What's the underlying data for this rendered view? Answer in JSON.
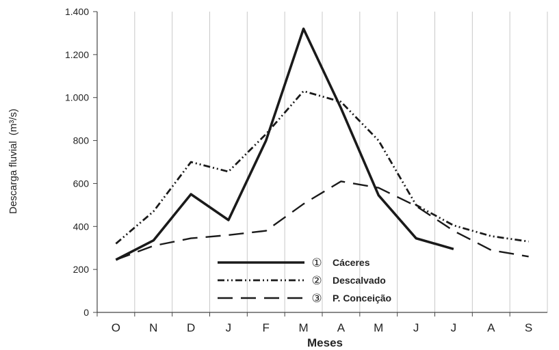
{
  "chart_data": {
    "type": "line",
    "title": "",
    "xlabel": "Meses",
    "ylabel": "Descarga fluvial",
    "ylabel_unit": "(m³/s)",
    "categories": [
      "O",
      "N",
      "D",
      "J",
      "F",
      "M",
      "A",
      "M",
      "J",
      "J",
      "A",
      "S"
    ],
    "ylim": [
      0,
      1400
    ],
    "yticks": [
      0,
      200,
      400,
      600,
      800,
      1000,
      1200,
      1400
    ],
    "ytick_labels": [
      "0",
      "200",
      "400",
      "600",
      "800",
      "1.000",
      "1.200",
      "1.400"
    ],
    "grid": "vertical",
    "legend_position": "bottom-center",
    "series": [
      {
        "name": "Cáceres",
        "marker": "①",
        "style": "solid",
        "color": "#1a1a1a",
        "values": [
          245,
          335,
          550,
          430,
          800,
          1320,
          950,
          545,
          345,
          295,
          null,
          null
        ]
      },
      {
        "name": "Descalvado",
        "marker": "②",
        "style": "dash-dot-dot",
        "color": "#1a1a1a",
        "values": [
          320,
          470,
          700,
          655,
          830,
          1030,
          980,
          800,
          500,
          405,
          355,
          330
        ]
      },
      {
        "name": "P. Conceição",
        "marker": "③",
        "style": "dashed",
        "color": "#1a1a1a",
        "values": [
          245,
          310,
          345,
          360,
          380,
          505,
          610,
          580,
          495,
          380,
          290,
          260
        ]
      }
    ]
  }
}
